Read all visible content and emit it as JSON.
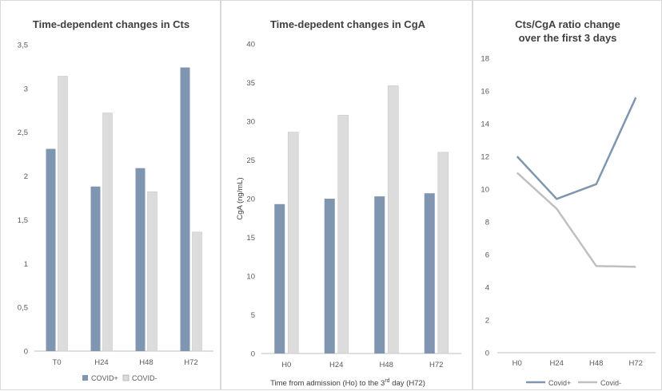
{
  "colors": {
    "covid_pos": "#8096b0",
    "covid_neg": "#dcdcdc",
    "covid_neg_line": "#bfbfbf",
    "axis": "#bfbfbf"
  },
  "chart_data": [
    {
      "type": "bar",
      "title": "Time-dependent changes in Cts",
      "categories": [
        "T0",
        "H24",
        "H48",
        "H72"
      ],
      "series": [
        {
          "name": "COVID+",
          "values": [
            2.31,
            1.88,
            2.09,
            3.24
          ]
        },
        {
          "name": "COVID-",
          "values": [
            3.14,
            2.72,
            1.82,
            1.36
          ]
        }
      ],
      "ylim": [
        0,
        3.5
      ],
      "yticks": [
        "0",
        "0,5",
        "1",
        "1,5",
        "2",
        "2,5",
        "3",
        "3,5"
      ],
      "xlabel": "",
      "ylabel": "",
      "legend": "bottom"
    },
    {
      "type": "bar",
      "title": "Time-depedent changes in CgA",
      "categories": [
        "H0",
        "H24",
        "H48",
        "H72"
      ],
      "series": [
        {
          "name": "",
          "values": [
            19.3,
            20.0,
            20.3,
            20.7
          ]
        },
        {
          "name": "",
          "values": [
            28.6,
            30.8,
            34.6,
            26.0
          ]
        }
      ],
      "ylim": [
        0,
        40
      ],
      "yticks": [
        "0",
        "5",
        "10",
        "15",
        "20",
        "25",
        "30",
        "35",
        "40"
      ],
      "xlabel": "Time from admission (Ho) to the 3",
      "xlabel_sup": "rd",
      "xlabel_end": " day (H72)",
      "ylabel": "CgA (ng/mL)"
    },
    {
      "type": "line",
      "title_line1": "Cts/CgA ratio change",
      "title_line2": "over the first 3 days",
      "categories": [
        "H0",
        "H24",
        "H48",
        "H72"
      ],
      "series": [
        {
          "name": "Covid+",
          "values": [
            12.0,
            9.4,
            10.3,
            15.6
          ]
        },
        {
          "name": "Covid-",
          "values": [
            11.0,
            8.8,
            5.3,
            5.25
          ]
        }
      ],
      "ylim": [
        0,
        18
      ],
      "yticks": [
        "0",
        "2",
        "4",
        "6",
        "8",
        "10",
        "12",
        "14",
        "16",
        "18"
      ],
      "xlabel": "",
      "ylabel": "",
      "legend": "bottom"
    }
  ]
}
